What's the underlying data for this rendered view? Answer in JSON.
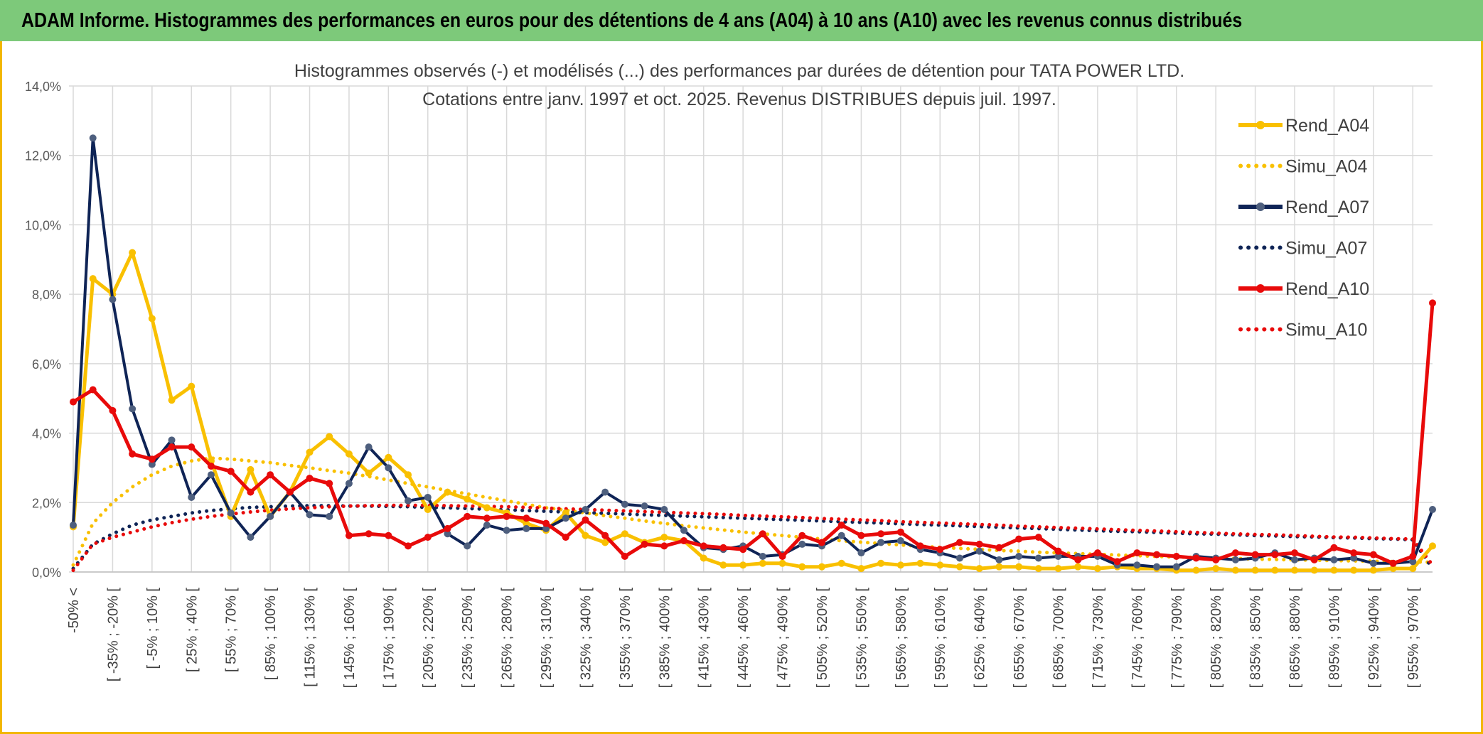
{
  "banner": {
    "title": "ADAM Informe. Histogrammes des performances en euros pour des détentions de 4 ans (A04) à 10 ans (A10) avec les revenus connus distribués"
  },
  "chart_data": {
    "type": "line",
    "title": "Histogrammes observés (-) et modélisés (...) des performances par durées de détention pour TATA POWER LTD.",
    "subtitle": "Cotations entre janv. 1997 et oct. 2025. Revenus DISTRIBUES depuis juil. 1997.",
    "xlabel": "",
    "ylabel": "",
    "ylim": [
      0,
      14
    ],
    "yticks": [
      "0,0%",
      "2,0%",
      "4,0%",
      "6,0%",
      "8,0%",
      "10,0%",
      "12,0%",
      "14,0%"
    ],
    "grid": true,
    "legend_position": "right",
    "n_points": 70,
    "x_tick_labels": [
      "-50% <",
      "[ -35% ; -20% [",
      "[ -5% ; 10% [",
      "[ 25% ; 40% [",
      "[ 55% ; 70% [",
      "[ 85% ; 100% [",
      "[ 115% ; 130% [",
      "[ 145% ; 160% [",
      "[ 175% ; 190% [",
      "[ 205% ; 220% [",
      "[ 235% ; 250% [",
      "[ 265% ; 280% [",
      "[ 295% ; 310% [",
      "[ 325% ; 340% [",
      "[ 355% ; 370% [",
      "[ 385% ; 400% [",
      "[ 415% ; 430% [",
      "[ 445% ; 460% [",
      "[ 475% ; 490% [",
      "[ 505% ; 520% [",
      "[ 535% ; 550% [",
      "[ 565% ; 580% [",
      "[ 595% ; 610% [",
      "[ 625% ; 640% [",
      "[ 655% ; 670% [",
      "[ 685% ; 700% [",
      "[ 715% ; 730% [",
      "[ 745% ; 760% [",
      "[ 775% ; 790% [",
      "[ 805% ; 820% [",
      "[ 835% ; 850% [",
      "[ 865% ; 880% [",
      "[ 895% ; 910% [",
      "[ 925% ; 940% [",
      "[ 955% ; 970% ["
    ],
    "series": [
      {
        "name": "Rend_A04",
        "style": "solid",
        "marker": true,
        "color": "#f9c000",
        "values": [
          1.3,
          8.45,
          8.0,
          9.2,
          7.3,
          4.95,
          5.35,
          3.2,
          1.6,
          2.95,
          1.6,
          2.3,
          3.45,
          3.9,
          3.4,
          2.85,
          3.3,
          2.8,
          1.8,
          2.3,
          2.1,
          1.85,
          1.7,
          1.4,
          1.2,
          1.7,
          1.05,
          0.85,
          1.1,
          0.85,
          1.0,
          0.9,
          0.4,
          0.2,
          0.2,
          0.25,
          0.25,
          0.15,
          0.15,
          0.25,
          0.1,
          0.25,
          0.2,
          0.25,
          0.2,
          0.15,
          0.1,
          0.15,
          0.15,
          0.1,
          0.1,
          0.15,
          0.1,
          0.15,
          0.1,
          0.1,
          0.05,
          0.05,
          0.1,
          0.05,
          0.05,
          0.05,
          0.05,
          0.05,
          0.05,
          0.05,
          0.05,
          0.1,
          0.1,
          0.75
        ]
      },
      {
        "name": "Simu_A04",
        "style": "dotted",
        "marker": false,
        "color": "#f9c000",
        "values": [
          0.2,
          1.4,
          2.0,
          2.45,
          2.8,
          3.05,
          3.2,
          3.28,
          3.25,
          3.2,
          3.15,
          3.07,
          3.0,
          2.92,
          2.85,
          2.75,
          2.65,
          2.55,
          2.45,
          2.35,
          2.25,
          2.15,
          2.05,
          1.95,
          1.85,
          1.78,
          1.7,
          1.62,
          1.55,
          1.47,
          1.4,
          1.33,
          1.27,
          1.21,
          1.15,
          1.1,
          1.05,
          1.0,
          0.95,
          0.9,
          0.86,
          0.82,
          0.78,
          0.74,
          0.71,
          0.68,
          0.65,
          0.62,
          0.6,
          0.57,
          0.55,
          0.53,
          0.51,
          0.49,
          0.47,
          0.45,
          0.43,
          0.42,
          0.4,
          0.39,
          0.37,
          0.36,
          0.35,
          0.34,
          0.33,
          0.32,
          0.31,
          0.3,
          0.29,
          0.28
        ]
      },
      {
        "name": "Rend_A07",
        "style": "solid",
        "marker": true,
        "color": "#0f2456",
        "values": [
          1.35,
          12.5,
          7.85,
          4.7,
          3.1,
          3.8,
          2.15,
          2.8,
          1.7,
          1.0,
          1.6,
          2.3,
          1.65,
          1.6,
          2.55,
          3.6,
          3.0,
          2.05,
          2.15,
          1.1,
          0.75,
          1.35,
          1.2,
          1.25,
          1.25,
          1.55,
          1.8,
          2.3,
          1.95,
          1.9,
          1.8,
          1.2,
          0.7,
          0.65,
          0.75,
          0.45,
          0.5,
          0.8,
          0.75,
          1.05,
          0.55,
          0.85,
          0.9,
          0.65,
          0.55,
          0.4,
          0.6,
          0.35,
          0.45,
          0.4,
          0.45,
          0.45,
          0.45,
          0.2,
          0.2,
          0.15,
          0.15,
          0.45,
          0.4,
          0.35,
          0.4,
          0.55,
          0.35,
          0.4,
          0.35,
          0.4,
          0.25,
          0.25,
          0.3,
          1.8
        ]
      },
      {
        "name": "Simu_A07",
        "style": "dotted",
        "marker": false,
        "color": "#0f2456",
        "values": [
          0.1,
          0.8,
          1.1,
          1.35,
          1.5,
          1.6,
          1.7,
          1.77,
          1.82,
          1.86,
          1.88,
          1.9,
          1.91,
          1.91,
          1.9,
          1.9,
          1.89,
          1.88,
          1.86,
          1.85,
          1.83,
          1.81,
          1.79,
          1.77,
          1.75,
          1.73,
          1.71,
          1.69,
          1.67,
          1.65,
          1.63,
          1.61,
          1.59,
          1.57,
          1.55,
          1.53,
          1.51,
          1.49,
          1.47,
          1.45,
          1.43,
          1.41,
          1.39,
          1.37,
          1.35,
          1.33,
          1.31,
          1.29,
          1.27,
          1.25,
          1.23,
          1.21,
          1.19,
          1.17,
          1.16,
          1.14,
          1.12,
          1.1,
          1.09,
          1.07,
          1.05,
          1.04,
          1.02,
          1.01,
          0.99,
          0.98,
          0.96,
          0.95,
          0.93,
          0.1
        ]
      },
      {
        "name": "Rend_A10",
        "style": "solid",
        "marker": true,
        "color": "#e80a0a",
        "values": [
          4.9,
          5.25,
          4.65,
          3.4,
          3.25,
          3.6,
          3.6,
          3.05,
          2.9,
          2.3,
          2.8,
          2.3,
          2.7,
          2.55,
          1.05,
          1.1,
          1.05,
          0.75,
          1.0,
          1.25,
          1.6,
          1.55,
          1.6,
          1.55,
          1.4,
          1.0,
          1.5,
          1.05,
          0.45,
          0.8,
          0.75,
          0.9,
          0.75,
          0.7,
          0.65,
          1.1,
          0.45,
          1.05,
          0.85,
          1.35,
          1.05,
          1.1,
          1.15,
          0.75,
          0.65,
          0.85,
          0.8,
          0.7,
          0.95,
          1.0,
          0.6,
          0.35,
          0.55,
          0.3,
          0.55,
          0.5,
          0.45,
          0.4,
          0.35,
          0.55,
          0.5,
          0.5,
          0.55,
          0.35,
          0.7,
          0.55,
          0.5,
          0.25,
          0.45,
          7.75
        ]
      },
      {
        "name": "Simu_A10",
        "style": "dotted",
        "marker": false,
        "color": "#e80a0a",
        "values": [
          0.05,
          0.8,
          1.0,
          1.15,
          1.3,
          1.42,
          1.52,
          1.6,
          1.67,
          1.73,
          1.78,
          1.82,
          1.85,
          1.88,
          1.9,
          1.91,
          1.92,
          1.92,
          1.92,
          1.91,
          1.9,
          1.89,
          1.88,
          1.86,
          1.84,
          1.82,
          1.8,
          1.78,
          1.76,
          1.74,
          1.72,
          1.7,
          1.68,
          1.66,
          1.63,
          1.61,
          1.59,
          1.57,
          1.54,
          1.52,
          1.5,
          1.48,
          1.45,
          1.43,
          1.41,
          1.39,
          1.37,
          1.35,
          1.32,
          1.3,
          1.28,
          1.26,
          1.24,
          1.22,
          1.2,
          1.18,
          1.16,
          1.14,
          1.12,
          1.1,
          1.08,
          1.07,
          1.05,
          1.03,
          1.01,
          1.0,
          0.98,
          0.96,
          0.95,
          0.2
        ]
      }
    ]
  }
}
